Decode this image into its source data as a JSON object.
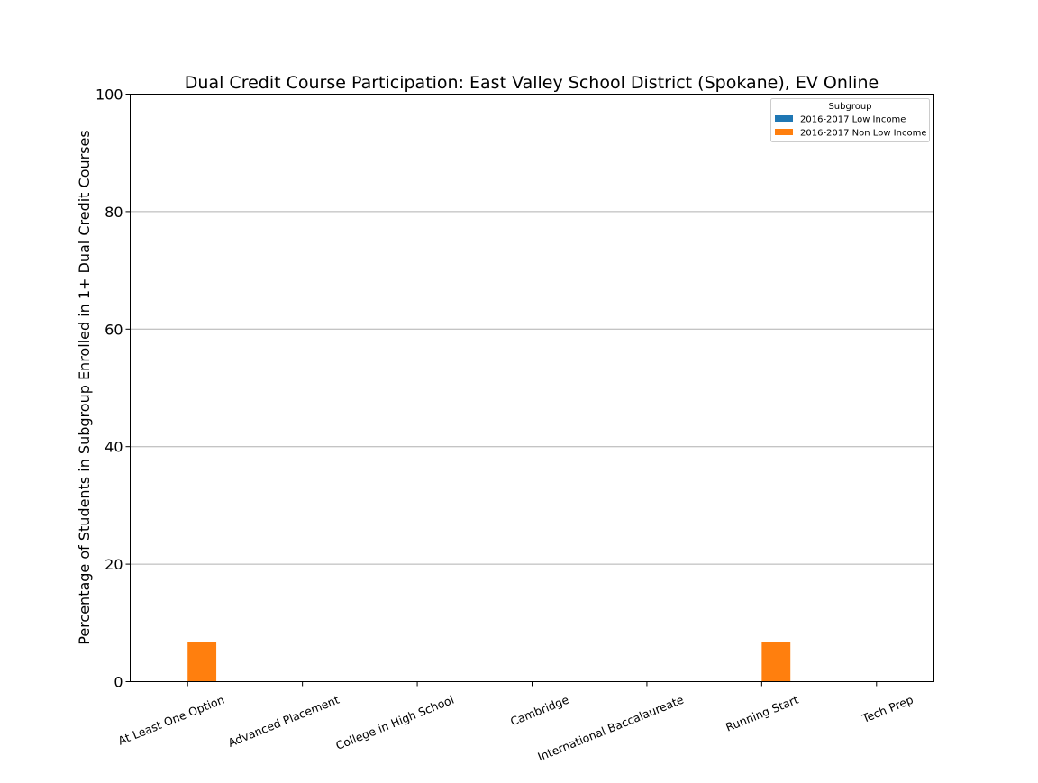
{
  "chart_data": {
    "type": "bar",
    "title": "Dual Credit Course Participation: East Valley School District (Spokane), EV Online",
    "xlabel": "",
    "ylabel": "Percentage of Students in Subgroup Enrolled in 1+ Dual Credit Courses",
    "ylim": [
      0,
      100
    ],
    "yticks": [
      "0",
      "20",
      "40",
      "60",
      "80",
      "100"
    ],
    "grid": "y",
    "categories": [
      "At Least One Option",
      "Advanced Placement",
      "College in High School",
      "Cambridge",
      "International Baccalaureate",
      "Running Start",
      "Tech Prep"
    ],
    "series": [
      {
        "name": "2016-2017 Low Income",
        "color": "#1f77b4",
        "values": [
          0,
          0,
          0,
          0,
          0,
          0,
          0
        ]
      },
      {
        "name": "2016-2017 Non Low Income",
        "color": "#ff7f0e",
        "values": [
          6.7,
          0,
          0,
          0,
          0,
          6.7,
          0
        ]
      }
    ],
    "legend": {
      "title": "Subgroup",
      "position": "top-right"
    }
  }
}
